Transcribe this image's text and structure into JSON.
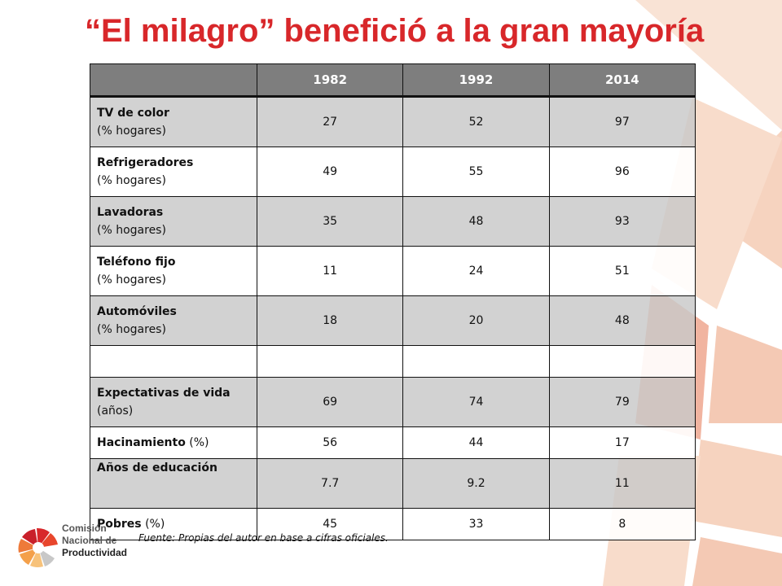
{
  "title": "“El milagro” benefició a la gran mayoría",
  "table": {
    "columns": [
      "",
      "1982",
      "1992",
      "2014"
    ],
    "rows": [
      {
        "label": "TV de color",
        "unit": "(% hogares)",
        "values": [
          "27",
          "52",
          "97"
        ]
      },
      {
        "label": "Refrigeradores",
        "unit": "(% hogares)",
        "values": [
          "49",
          "55",
          "96"
        ]
      },
      {
        "label": "Lavadoras",
        "unit": "(% hogares)",
        "values": [
          "35",
          "48",
          "93"
        ]
      },
      {
        "label": "Teléfono fijo",
        "unit": "(% hogares)",
        "values": [
          "11",
          "24",
          "51"
        ]
      },
      {
        "label": "Automóviles",
        "unit": "(% hogares)",
        "values": [
          "18",
          "20",
          "48"
        ]
      },
      {
        "label": "Expectativas de vida",
        "unit": "(años)",
        "values": [
          "69",
          "74",
          "79"
        ]
      },
      {
        "label": "Hacinamiento",
        "unit": "(%)",
        "values": [
          "56",
          "44",
          "17"
        ]
      },
      {
        "label": "Años de educación",
        "unit": "",
        "values": [
          "7.7",
          "9.2",
          "11"
        ]
      },
      {
        "label": "Pobres",
        "unit": "(%)",
        "values": [
          "45",
          "33",
          "8"
        ]
      }
    ]
  },
  "source": "Fuente: Propias del autor en base a cifras oficiales.",
  "logo": {
    "line1": "Comisión",
    "line2": "Nacional de",
    "line3": "Productividad",
    "icon": "cnp-logo-icon"
  },
  "colors": {
    "title": "#d8272a",
    "header_bg": "#737373",
    "row_shade": "#c8c8c8",
    "deco_light": "#f8dccb",
    "deco_mid": "#f1b4a0"
  }
}
